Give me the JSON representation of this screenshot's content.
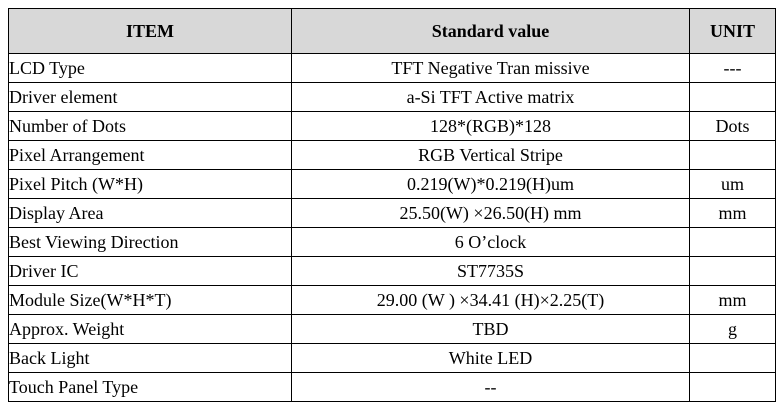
{
  "table": {
    "headers": {
      "item": "ITEM",
      "value": "Standard value",
      "unit": "UNIT"
    },
    "rows": [
      {
        "item": "LCD Type",
        "value": "TFT Negative Tran missive",
        "unit": "---"
      },
      {
        "item": "Driver element",
        "value": "a-Si TFT Active matrix",
        "unit": ""
      },
      {
        "item": "Number of Dots",
        "value": "128*(RGB)*128",
        "unit": "Dots"
      },
      {
        "item": "Pixel Arrangement",
        "value": "RGB Vertical Stripe",
        "unit": ""
      },
      {
        "item": "Pixel Pitch (W*H)",
        "value": "0.219(W)*0.219(H)um",
        "unit": "um"
      },
      {
        "item": "Display Area",
        "value": "25.50(W) ×26.50(H) mm",
        "unit": "mm"
      },
      {
        "item": "Best Viewing Direction",
        "value": "6 O’clock",
        "unit": ""
      },
      {
        "item": "Driver IC",
        "value": "ST7735S",
        "unit": ""
      },
      {
        "item": "Module Size(W*H*T)",
        "value": "29.00 (W ) ×34.41 (H)×2.25(T)",
        "unit": "mm"
      },
      {
        "item": "Approx. Weight",
        "value": "TBD",
        "unit": "g"
      },
      {
        "item": "Back Light",
        "value": "White  LED",
        "unit": ""
      },
      {
        "item": "Touch Panel Type",
        "value": "--",
        "unit": ""
      }
    ]
  }
}
